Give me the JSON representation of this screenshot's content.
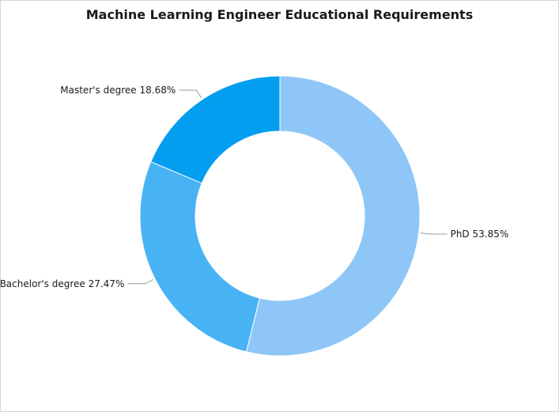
{
  "chart_data": {
    "type": "pie",
    "title": "Machine Learning Engineer Educational Requirements",
    "donut": true,
    "slices": [
      {
        "label": "PhD",
        "value": 53.85,
        "display": "PhD 53.85%",
        "color": "#8ec7f7"
      },
      {
        "label": "Bachelor's degree",
        "value": 27.47,
        "display": "Bachelor's degree 27.47%",
        "color": "#47b3f4"
      },
      {
        "label": "Master's degree",
        "value": 18.68,
        "display": "Master's degree 18.68%",
        "color": "#049ef0"
      }
    ]
  }
}
